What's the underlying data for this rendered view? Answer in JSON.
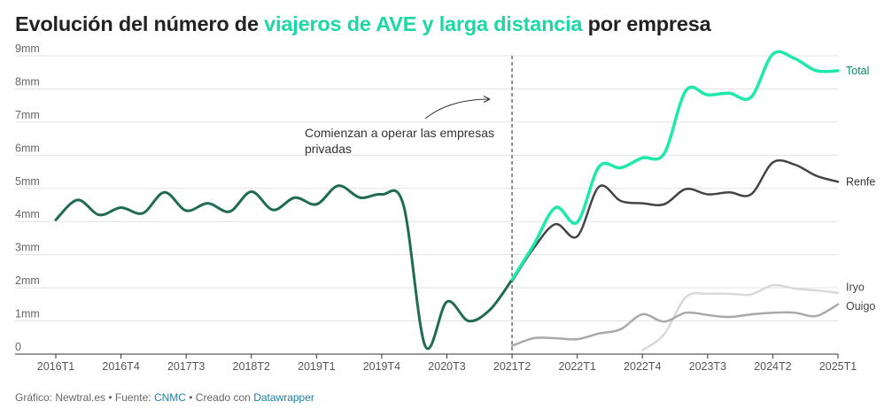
{
  "title": {
    "before": "Evolución del número de ",
    "highlight": "viajeros de AVE y larga distancia",
    "after": " por empresa"
  },
  "annotation": {
    "line1": "Comienzan a operar las empresas",
    "line2": "privadas"
  },
  "footer": {
    "grafico_label": "Gráfico: Newtral.es",
    "sep1": " • Fuente: ",
    "fuente_link": "CNMC",
    "sep2": " • Creado con ",
    "tool_link": "Datawrapper"
  },
  "colors": {
    "total": "#1ee8ac",
    "pre_private": "#1f6b53",
    "renfe": "#444444",
    "iryo": "#d9d9d9",
    "ouigo": "#a9a9a9",
    "grid": "#e3e3e3",
    "title_highlight": "#1cd8a4",
    "link": "#1d81a2"
  },
  "chart_data": {
    "type": "line",
    "x_unit": "quarter",
    "x_start": "2016T1",
    "y_unit": "mm",
    "ylim": [
      0,
      9
    ],
    "y_ticks": [
      "0",
      "1mm",
      "2mm",
      "3mm",
      "4mm",
      "5mm",
      "6mm",
      "7mm",
      "8mm",
      "9mm"
    ],
    "x_ticks": [
      "2016T1",
      "2016T4",
      "2017T3",
      "2018T2",
      "2019T1",
      "2019T4",
      "2020T3",
      "2021T2",
      "2022T1",
      "2022T4",
      "2023T3",
      "2024T2",
      "2025T1"
    ],
    "vline_at": "2021T2",
    "series": [
      {
        "name": "Total",
        "key": "total",
        "start": "2016T1",
        "values": [
          4.05,
          4.65,
          4.2,
          4.42,
          4.25,
          4.88,
          4.33,
          4.55,
          4.3,
          4.9,
          4.35,
          4.72,
          4.52,
          5.08,
          4.72,
          4.82,
          4.5,
          0.25,
          1.58,
          1.0,
          1.35,
          2.25,
          3.3,
          4.42,
          3.98,
          5.65,
          5.62,
          5.92,
          6.05,
          7.95,
          7.82,
          7.87,
          7.75,
          9.05,
          8.92,
          8.55,
          8.55
        ]
      },
      {
        "name": "Renfe",
        "key": "renfe",
        "start": "2021T2",
        "values": [
          2.2,
          3.2,
          3.92,
          3.55,
          5.05,
          4.62,
          4.55,
          4.52,
          4.98,
          4.82,
          4.88,
          4.82,
          5.78,
          5.72,
          5.38,
          5.2
        ]
      },
      {
        "name": "Iryo",
        "key": "iryo",
        "start": "2022T4",
        "values": [
          0.12,
          0.6,
          1.72,
          1.82,
          1.82,
          1.8,
          2.08,
          1.98,
          1.92,
          1.85
        ]
      },
      {
        "name": "Ouigo",
        "key": "ouigo",
        "start": "2021T2",
        "values": [
          0.25,
          0.48,
          0.48,
          0.45,
          0.62,
          0.75,
          1.2,
          0.98,
          1.25,
          1.18,
          1.12,
          1.2,
          1.25,
          1.25,
          1.15,
          1.5
        ]
      }
    ],
    "pre_private_until": "2021T2"
  }
}
